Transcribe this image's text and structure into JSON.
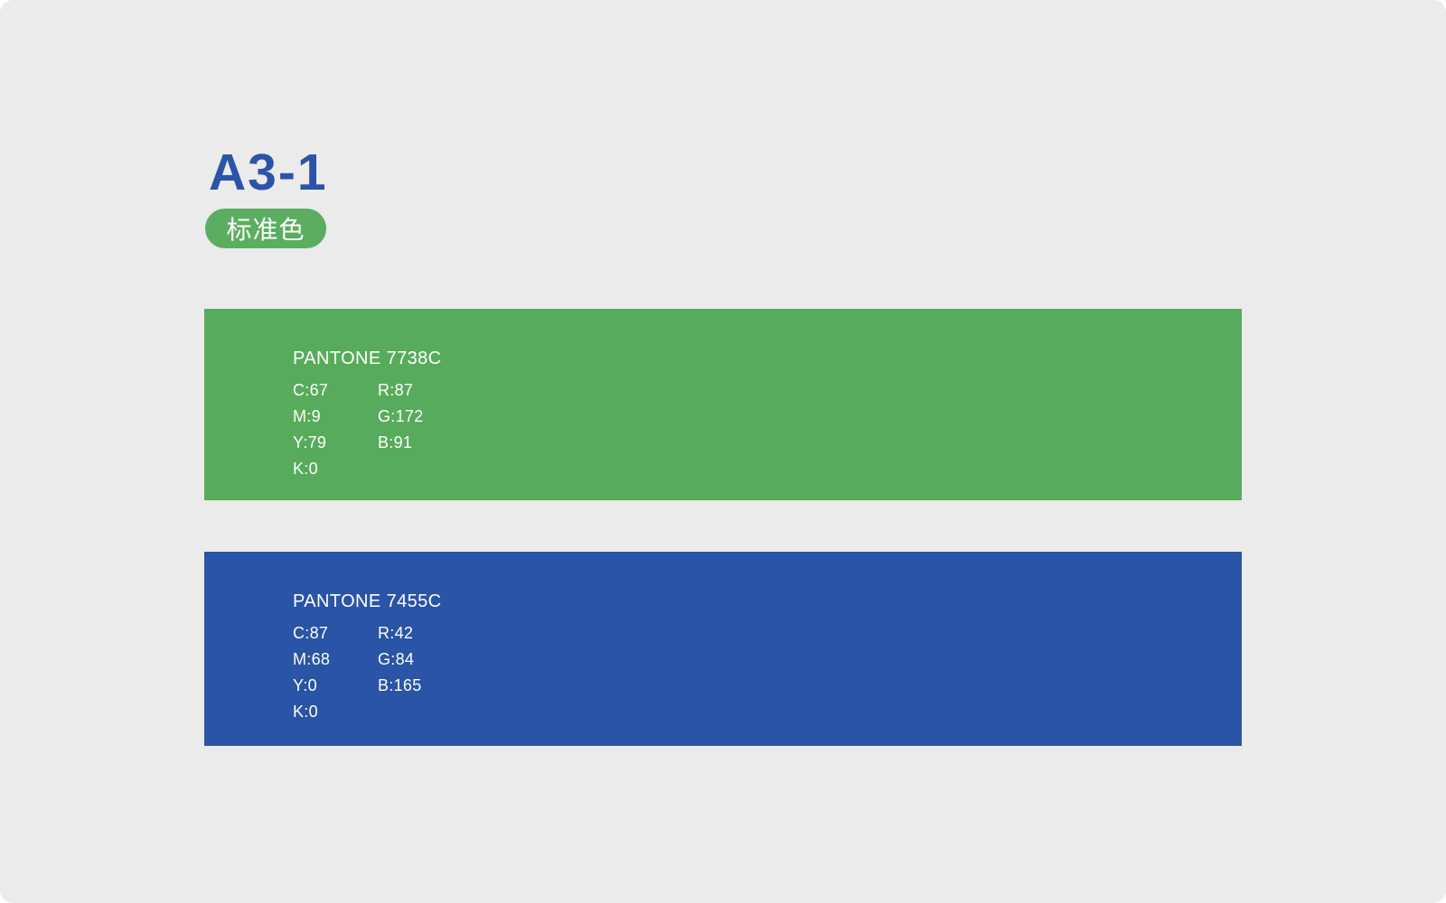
{
  "page": {
    "title": "A3-1",
    "badge_label": "标准色"
  },
  "colors": {
    "canvas_background": "#EBEBEB",
    "title_blue": "#2B54A8",
    "badge_green": "#5BAE5F",
    "text_on_swatch": "#FFFFFF"
  },
  "swatches": [
    {
      "name": "PANTONE 7738C",
      "hex": "#57AC5B",
      "cmyk": [
        "C:67",
        "M:9",
        "Y:79",
        "K:0"
      ],
      "rgb": [
        "R:87",
        "G:172",
        "B:91"
      ]
    },
    {
      "name": "PANTONE 7455C",
      "hex": "#2A54A5",
      "cmyk": [
        "C:87",
        "M:68",
        "Y:0",
        "K:0"
      ],
      "rgb": [
        "R:42",
        "G:84",
        "B:165"
      ]
    }
  ]
}
